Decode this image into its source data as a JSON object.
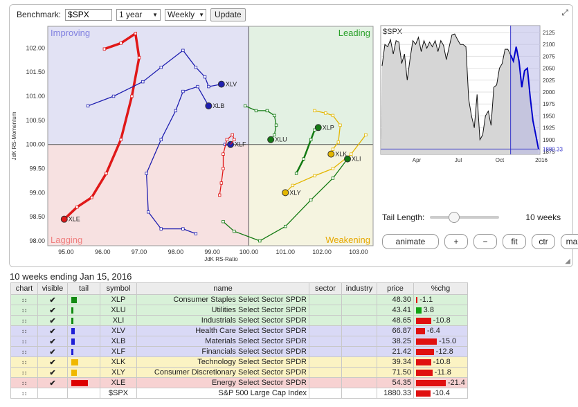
{
  "toolbar": {
    "benchmark_label": "Benchmark:",
    "benchmark_value": "$SPX",
    "period_value": "1 year",
    "interval_value": "Weekly",
    "update_label": "Update"
  },
  "rrg": {
    "quadrants": {
      "improving": "Improving",
      "leading": "Leading",
      "lagging": "Lagging",
      "weakening": "Weakening"
    },
    "colors": {
      "leading": "#137a13",
      "weakening": "#e3b600",
      "lagging": "#e01818",
      "improving": "#1f1fb0"
    },
    "xlabel": "JdK RS-Ratio",
    "ylabel": "JdK RS-Momentum",
    "x_ticks": [
      "95.00",
      "96.00",
      "97.00",
      "98.00",
      "99.00",
      "100.00",
      "101.00",
      "102.00",
      "103.00"
    ],
    "y_ticks": [
      "102.00",
      "101.50",
      "101.00",
      "100.50",
      "100.00",
      "99.50",
      "99.00",
      "98.50",
      "98.00"
    ]
  },
  "chart_data": {
    "type": "scatter",
    "xlabel": "JdK RS-Ratio",
    "ylabel": "JdK RS-Momentum",
    "xlim": [
      94.5,
      103.4
    ],
    "ylim": [
      97.9,
      102.45
    ],
    "series": [
      {
        "name": "XLE",
        "color": "#e01818",
        "points": [
          [
            96.05,
            101.98
          ],
          [
            96.5,
            102.1
          ],
          [
            96.9,
            102.3
          ],
          [
            97.0,
            101.8
          ],
          [
            96.8,
            101.0
          ],
          [
            96.5,
            100.1
          ],
          [
            96.1,
            99.4
          ],
          [
            95.7,
            98.9
          ],
          [
            95.3,
            98.7
          ],
          [
            94.95,
            98.45
          ]
        ]
      },
      {
        "name": "XLB",
        "color": "#1f1fb0",
        "points": [
          [
            98.55,
            98.15
          ],
          [
            98.2,
            98.25
          ],
          [
            97.6,
            98.25
          ],
          [
            97.25,
            98.6
          ],
          [
            97.2,
            99.4
          ],
          [
            97.6,
            100.1
          ],
          [
            98.0,
            100.7
          ],
          [
            98.2,
            101.1
          ],
          [
            98.6,
            101.2
          ],
          [
            98.9,
            100.8
          ]
        ]
      },
      {
        "name": "XLV",
        "color": "#1f1fb0",
        "points": [
          [
            95.6,
            100.8
          ],
          [
            96.3,
            101.0
          ],
          [
            97.1,
            101.3
          ],
          [
            97.6,
            101.6
          ],
          [
            98.2,
            101.95
          ],
          [
            98.55,
            101.6
          ],
          [
            98.8,
            101.4
          ],
          [
            98.9,
            101.2
          ],
          [
            99.25,
            101.25
          ]
        ]
      },
      {
        "name": "XLF",
        "color": "#1f1fb0",
        "points": [
          [
            99.35,
            100.0
          ],
          [
            99.5,
            100.0
          ]
        ]
      },
      {
        "name": "XLF-tail",
        "color": "#e01818",
        "points": [
          [
            99.2,
            98.95
          ],
          [
            99.25,
            99.2
          ],
          [
            99.3,
            99.5
          ],
          [
            99.3,
            99.8
          ],
          [
            99.4,
            100.1
          ],
          [
            99.55,
            100.2
          ],
          [
            99.6,
            100.1
          ],
          [
            99.5,
            100.0
          ]
        ]
      },
      {
        "name": "XLU",
        "color": "#137a13",
        "points": [
          [
            99.9,
            100.8
          ],
          [
            100.2,
            100.7
          ],
          [
            100.5,
            100.7
          ],
          [
            100.7,
            100.6
          ],
          [
            100.75,
            100.4
          ],
          [
            100.7,
            100.2
          ],
          [
            100.6,
            100.1
          ]
        ]
      },
      {
        "name": "XLP",
        "color": "#137a13",
        "points": [
          [
            101.3,
            99.4
          ],
          [
            101.5,
            99.7
          ],
          [
            101.7,
            100.1
          ],
          [
            101.8,
            100.3
          ],
          [
            101.9,
            100.35
          ]
        ]
      },
      {
        "name": "XLK",
        "color": "#e3b600",
        "points": [
          [
            101.8,
            100.7
          ],
          [
            102.1,
            100.65
          ],
          [
            102.3,
            100.6
          ],
          [
            102.5,
            100.4
          ],
          [
            102.45,
            100.05
          ],
          [
            102.3,
            99.9
          ],
          [
            102.25,
            99.8
          ]
        ]
      },
      {
        "name": "XLY",
        "color": "#e3b600",
        "points": [
          [
            103.2,
            100.2
          ],
          [
            102.8,
            99.8
          ],
          [
            102.3,
            99.5
          ],
          [
            101.8,
            99.35
          ],
          [
            101.2,
            99.15
          ],
          [
            101.0,
            99.0
          ]
        ]
      },
      {
        "name": "XLI",
        "color": "#137a13",
        "points": [
          [
            99.3,
            98.4
          ],
          [
            99.6,
            98.2
          ],
          [
            100.3,
            98.0
          ],
          [
            101.0,
            98.3
          ],
          [
            101.7,
            98.85
          ],
          [
            102.3,
            99.3
          ],
          [
            102.7,
            99.7
          ]
        ]
      }
    ]
  },
  "benchmark_chart": {
    "title": "$SPX",
    "y_ticks": [
      "2125",
      "2100",
      "2075",
      "2050",
      "2025",
      "2000",
      "1975",
      "1950",
      "1925",
      "1900",
      "1875"
    ],
    "x_ticks": [
      "Apr",
      "Jul",
      "Oct",
      "2016"
    ],
    "last_value": "1880.33",
    "line_color": "#0000cc"
  },
  "tail": {
    "label": "Tail Length:",
    "value_label": "10 weeks",
    "value": 10,
    "max": 30
  },
  "controls": [
    "animate",
    "+",
    "−",
    "fit",
    "ctr",
    "max"
  ],
  "table": {
    "subtitle": "10 weeks ending Jan 15, 2016",
    "headers": [
      "chart",
      "visible",
      "tail",
      "symbol",
      "name",
      "sector",
      "industry",
      "price",
      "%chg"
    ],
    "rows": [
      {
        "symbol": "XLP",
        "name": "Consumer Staples Select Sector SPDR",
        "price": "48.30",
        "chg": "-1.1",
        "chg_value": -1.1,
        "tail": 8,
        "color": "#d8f1d8",
        "tail_color": "#128a12",
        "visible": "✔"
      },
      {
        "symbol": "XLU",
        "name": "Utilities Select Sector SPDR",
        "price": "43.41",
        "chg": "3.8",
        "chg_value": 3.8,
        "tail": 3,
        "color": "#d8f1d8",
        "tail_color": "#128a12",
        "visible": "✔"
      },
      {
        "symbol": "XLI",
        "name": "Industrials Select Sector SPDR",
        "price": "48.65",
        "chg": "-10.8",
        "chg_value": -10.8,
        "tail": 3,
        "color": "#d8f1d8",
        "tail_color": "#128a12",
        "visible": "✔"
      },
      {
        "symbol": "XLV",
        "name": "Health Care Select Sector SPDR",
        "price": "66.87",
        "chg": "-6.4",
        "chg_value": -6.4,
        "tail": 5,
        "color": "#d9d9f6",
        "tail_color": "#1f1fd6",
        "visible": "✔"
      },
      {
        "symbol": "XLB",
        "name": "Materials Select Sector SPDR",
        "price": "38.25",
        "chg": "-15.0",
        "chg_value": -15.0,
        "tail": 5,
        "color": "#d9d9f6",
        "tail_color": "#1f1fd6",
        "visible": "✔"
      },
      {
        "symbol": "XLF",
        "name": "Financials Select Sector SPDR",
        "price": "21.42",
        "chg": "-12.8",
        "chg_value": -12.8,
        "tail": 3,
        "color": "#d9d9f6",
        "tail_color": "#1f1fd6",
        "visible": "✔"
      },
      {
        "symbol": "XLK",
        "name": "Technology Select Sector SPDR",
        "price": "39.34",
        "chg": "-10.8",
        "chg_value": -10.8,
        "tail": 10,
        "color": "#fbf3c3",
        "tail_color": "#f0b800",
        "visible": "✔"
      },
      {
        "symbol": "XLY",
        "name": "Consumer Discretionary Select Sector SPDR",
        "price": "71.50",
        "chg": "-11.8",
        "chg_value": -11.8,
        "tail": 8,
        "color": "#fbf3c3",
        "tail_color": "#f0b800",
        "visible": "✔"
      },
      {
        "symbol": "XLE",
        "name": "Energy Select Sector SPDR",
        "price": "54.35",
        "chg": "-21.4",
        "chg_value": -21.4,
        "tail": 24,
        "color": "#f7d2d2",
        "tail_color": "#dd0000",
        "visible": "✔"
      },
      {
        "symbol": "$SPX",
        "name": "S&P 500 Large Cap Index",
        "price": "1880.33",
        "chg": "-10.4",
        "chg_value": -10.4,
        "tail": 0,
        "color": "#ffffff",
        "tail_color": "#dd0000",
        "visible": ""
      }
    ]
  }
}
